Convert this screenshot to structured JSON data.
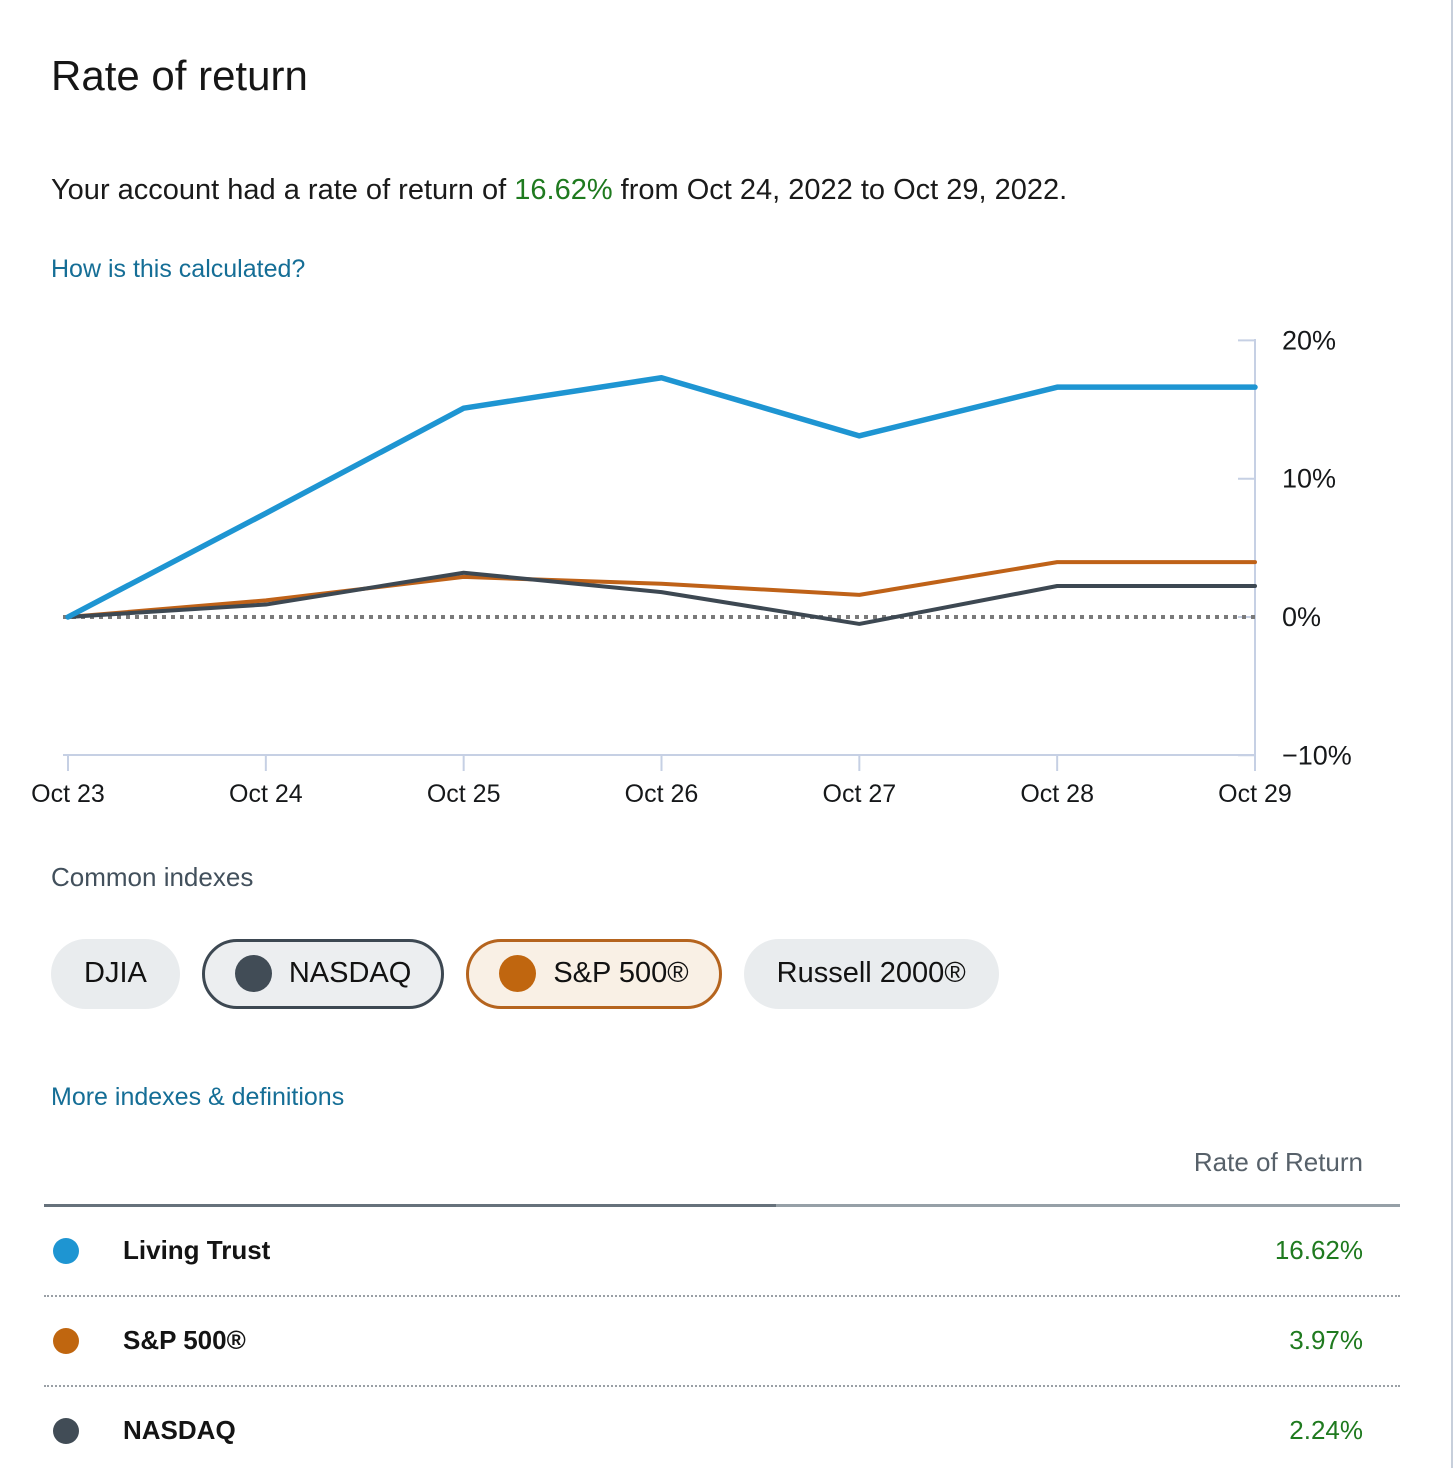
{
  "header": {
    "title": "Rate of return",
    "summary_prefix": "Your account had a rate of return of ",
    "summary_value": "16.62%",
    "summary_suffix": " from Oct 24, 2022 to Oct 29, 2022.",
    "calc_link": "How is this calculated?"
  },
  "chart_data": {
    "type": "line",
    "x": [
      "Oct 23",
      "Oct 24",
      "Oct 25",
      "Oct 26",
      "Oct 27",
      "Oct 28",
      "Oct 29"
    ],
    "series": [
      {
        "name": "Living Trust",
        "color": "#1e95d2",
        "width": 5.5,
        "z": 3,
        "values": [
          0,
          7.5,
          15.1,
          17.3,
          13.1,
          16.62,
          16.62
        ]
      },
      {
        "name": "S&P 500®",
        "color": "#bf6218",
        "width": 4,
        "z": 1,
        "values": [
          0,
          1.2,
          2.9,
          2.4,
          1.6,
          3.97,
          3.97
        ]
      },
      {
        "name": "NASDAQ",
        "color": "#3d4852",
        "width": 4,
        "z": 2,
        "values": [
          0,
          0.9,
          3.2,
          1.8,
          -0.5,
          2.24,
          2.24
        ]
      }
    ],
    "y_ticks": [
      {
        "value": 20,
        "label": "20%"
      },
      {
        "value": 10,
        "label": "10%"
      },
      {
        "value": 0,
        "label": "0%"
      },
      {
        "value": -10,
        "label": "−10%"
      }
    ],
    "ylim": [
      -10,
      20
    ],
    "grid": false,
    "zero_line": true,
    "legend_position": "none",
    "axis_color": "#c6d0e4",
    "zero_line_color": "#7a7a7a"
  },
  "indexes": {
    "heading": "Common indexes",
    "pills": [
      {
        "label": "DJIA",
        "selected": false
      },
      {
        "label": "NASDAQ",
        "selected": true,
        "dot_color": "#414c56",
        "border_color": "#3d4852"
      },
      {
        "label": "S&P 500®",
        "selected": true,
        "dot_color": "#c0660f",
        "border_color": "#b5641e"
      },
      {
        "label": "Russell 2000®",
        "selected": false
      }
    ],
    "more_link": "More indexes & definitions"
  },
  "table": {
    "value_header": "Rate of Return",
    "rows": [
      {
        "name": "Living Trust",
        "dot_color": "#1e95d2",
        "value": "16.62%"
      },
      {
        "name": "S&P 500®",
        "dot_color": "#c0660f",
        "value": "3.97%"
      },
      {
        "name": "NASDAQ",
        "dot_color": "#414c56",
        "value": "2.24%"
      }
    ]
  },
  "colors": {
    "positive_green": "#1f7a1f",
    "link_blue": "#156e96",
    "account_blue": "#1e95d2",
    "sp500_orange": "#bf6218",
    "nasdaq_slate": "#3d4852"
  }
}
